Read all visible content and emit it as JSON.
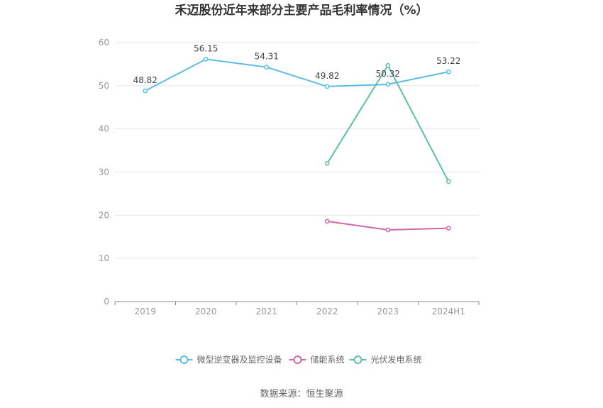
{
  "chart_data": {
    "type": "line",
    "title": "禾迈股份近年来部分主要产品毛利率情况（%）",
    "categories": [
      "2019",
      "2020",
      "2021",
      "2022",
      "2023",
      "2024H1"
    ],
    "ylim": [
      0,
      60
    ],
    "yticks": [
      0,
      10,
      20,
      30,
      40,
      50,
      60
    ],
    "grid": true,
    "legend_position": "bottom",
    "series": [
      {
        "name": "微型逆变器及监控设备",
        "color": "#5bbdea",
        "values": [
          48.82,
          56.15,
          54.31,
          49.82,
          50.32,
          53.22
        ],
        "labels": [
          "48.82",
          "56.15",
          "54.31",
          "49.82",
          "50.32",
          "53.22"
        ]
      },
      {
        "name": "储能系统",
        "color": "#d166a8",
        "values": [
          null,
          null,
          null,
          18.6,
          16.6,
          17.0
        ]
      },
      {
        "name": "光伏发电系统",
        "color": "#5dbfa6",
        "values": [
          null,
          null,
          null,
          32.0,
          54.7,
          27.8
        ]
      }
    ]
  },
  "footer": {
    "source": "数据来源：恒生聚源"
  }
}
